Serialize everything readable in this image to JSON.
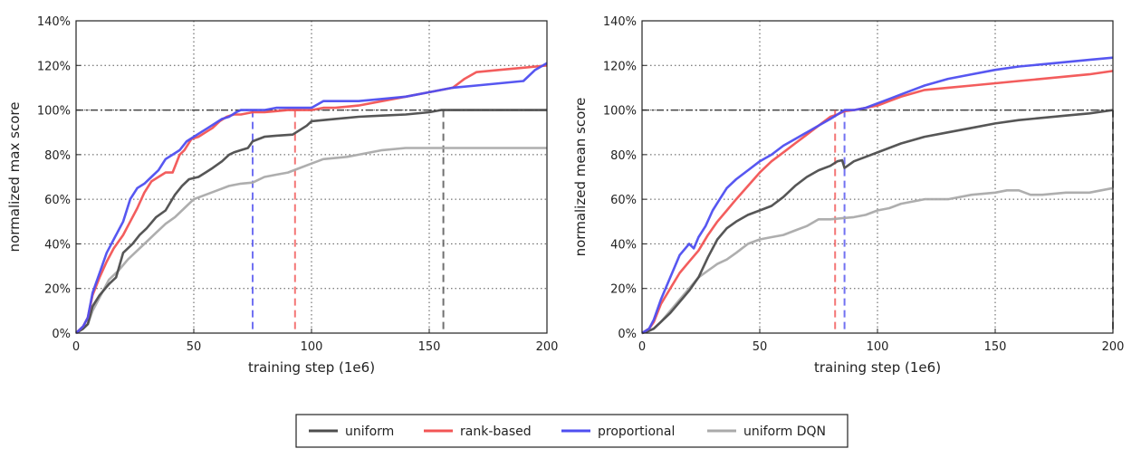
{
  "legend": {
    "items": [
      {
        "label": "uniform",
        "color": "#4d4d4d"
      },
      {
        "label": "rank-based",
        "color": "#f25454"
      },
      {
        "label": "proportional",
        "color": "#4e4ef0"
      },
      {
        "label": "uniform DQN",
        "color": "#aaaaaa"
      }
    ]
  },
  "chart_data": [
    {
      "type": "line",
      "xlabel": "training step (1e6)",
      "ylabel": "normalized max score",
      "xlim": [
        0,
        200
      ],
      "ylim": [
        0,
        140
      ],
      "xticks": [
        "0",
        "50",
        "100",
        "150",
        "200"
      ],
      "yticks": [
        "0%",
        "20%",
        "40%",
        "60%",
        "80%",
        "100%",
        "120%",
        "140%"
      ],
      "grid": true,
      "reference_line": 100,
      "vlines": [
        {
          "series": "proportional",
          "x": 75
        },
        {
          "series": "rank-based",
          "x": 93
        },
        {
          "series": "uniform",
          "x": 156
        }
      ],
      "series": [
        {
          "name": "uniform",
          "color": "#4d4d4d",
          "x": [
            0,
            3,
            5,
            7,
            10,
            14,
            17,
            20,
            24,
            27,
            30,
            34,
            38,
            42,
            45,
            48,
            52,
            55,
            58,
            62,
            65,
            67,
            70,
            73,
            75,
            80,
            85,
            92,
            98,
            100,
            110,
            120,
            130,
            140,
            150,
            155,
            160,
            170,
            180,
            190,
            200
          ],
          "y": [
            0,
            2,
            4,
            12,
            17,
            22,
            25,
            36,
            40,
            44,
            47,
            52,
            55,
            62,
            66,
            69,
            70,
            72,
            74,
            77,
            80,
            81,
            82,
            83,
            86,
            88,
            88.5,
            89,
            93,
            95,
            96,
            97,
            97.5,
            98,
            99,
            100,
            100,
            100,
            100,
            100,
            100
          ]
        },
        {
          "name": "rank-based",
          "color": "#f25454",
          "x": [
            0,
            3,
            5,
            7,
            10,
            13,
            16,
            20,
            23,
            26,
            29,
            32,
            35,
            38,
            41,
            44,
            46,
            49,
            52,
            55,
            58,
            61,
            64,
            67,
            70,
            75,
            80,
            85,
            90,
            95,
            100,
            105,
            110,
            120,
            130,
            140,
            150,
            160,
            165,
            170,
            180,
            190,
            200
          ],
          "y": [
            0,
            3,
            7,
            17,
            25,
            32,
            38,
            44,
            50,
            56,
            63,
            68,
            70,
            72,
            72,
            80,
            82,
            87,
            88,
            90,
            92,
            95,
            97,
            98,
            98,
            99,
            99,
            99.5,
            100,
            100,
            100,
            101,
            101,
            102,
            104,
            106,
            108,
            110,
            114,
            117,
            118,
            119,
            120
          ]
        },
        {
          "name": "proportional",
          "color": "#4e4ef0",
          "x": [
            0,
            3,
            5,
            7,
            10,
            13,
            16,
            20,
            23,
            26,
            29,
            32,
            35,
            38,
            41,
            44,
            47,
            50,
            53,
            56,
            59,
            62,
            65,
            68,
            70,
            75,
            80,
            85,
            90,
            95,
            100,
            105,
            110,
            120,
            130,
            140,
            150,
            160,
            170,
            180,
            190,
            195,
            200
          ],
          "y": [
            0,
            3,
            7,
            18,
            27,
            36,
            42,
            50,
            60,
            65,
            67,
            70,
            73,
            78,
            80,
            82,
            86,
            88,
            90,
            92,
            94,
            96,
            97,
            99,
            100,
            100,
            100,
            101,
            101,
            101,
            101,
            104,
            104,
            104,
            105,
            106,
            108,
            110,
            111,
            112,
            113,
            118,
            121
          ]
        },
        {
          "name": "uniform DQN",
          "color": "#aaaaaa",
          "x": [
            0,
            3,
            5,
            7,
            10,
            14,
            18,
            22,
            26,
            30,
            34,
            38,
            42,
            46,
            50,
            55,
            60,
            65,
            70,
            75,
            80,
            85,
            90,
            95,
            100,
            105,
            110,
            115,
            120,
            125,
            130,
            140,
            150,
            160,
            170,
            180,
            190,
            200
          ],
          "y": [
            0,
            2,
            4,
            10,
            16,
            24,
            28,
            33,
            37,
            41,
            45,
            49,
            52,
            56,
            60,
            62,
            64,
            66,
            67,
            67.5,
            70,
            71,
            72,
            74,
            76,
            78,
            78.5,
            79,
            80,
            81,
            82,
            83,
            83,
            83,
            83,
            83,
            83,
            83
          ]
        }
      ]
    },
    {
      "type": "line",
      "xlabel": "training step (1e6)",
      "ylabel": "normalized mean score",
      "xlim": [
        0,
        200
      ],
      "ylim": [
        0,
        140
      ],
      "xticks": [
        "0",
        "50",
        "100",
        "150",
        "200"
      ],
      "yticks": [
        "0%",
        "20%",
        "40%",
        "60%",
        "80%",
        "100%",
        "120%",
        "140%"
      ],
      "grid": true,
      "reference_line": 100,
      "vlines": [
        {
          "series": "rank-based",
          "x": 82
        },
        {
          "series": "proportional",
          "x": 86
        },
        {
          "series": "uniform",
          "x": 200
        }
      ],
      "series": [
        {
          "name": "uniform",
          "color": "#4d4d4d",
          "x": [
            0,
            3,
            5,
            8,
            12,
            16,
            20,
            24,
            28,
            32,
            36,
            40,
            45,
            50,
            55,
            60,
            65,
            70,
            75,
            80,
            83,
            85,
            86,
            90,
            95,
            100,
            110,
            120,
            130,
            140,
            150,
            160,
            170,
            180,
            190,
            200
          ],
          "y": [
            0,
            1,
            2,
            5,
            9,
            14,
            19,
            25,
            34,
            42,
            47,
            50,
            53,
            55,
            57,
            61,
            66,
            70,
            73,
            75,
            77,
            77.5,
            74,
            77,
            79,
            81,
            85,
            88,
            90,
            92,
            94,
            95.5,
            96.5,
            97.5,
            98.5,
            100
          ]
        },
        {
          "name": "rank-based",
          "color": "#f25454",
          "x": [
            0,
            3,
            5,
            8,
            12,
            16,
            20,
            24,
            28,
            32,
            36,
            40,
            45,
            50,
            55,
            60,
            65,
            70,
            75,
            80,
            83,
            86,
            90,
            95,
            100,
            105,
            110,
            120,
            130,
            140,
            150,
            160,
            170,
            180,
            190,
            200
          ],
          "y": [
            0,
            2,
            5,
            13,
            20,
            27,
            32,
            37,
            44,
            50,
            55,
            60,
            66,
            72,
            77,
            81,
            85,
            89,
            93,
            97,
            98,
            99.5,
            100,
            101,
            102,
            104,
            106,
            109,
            110,
            111,
            112,
            113,
            114,
            115,
            116,
            117.5
          ]
        },
        {
          "name": "proportional",
          "color": "#4e4ef0",
          "x": [
            0,
            3,
            5,
            8,
            12,
            16,
            20,
            22,
            24,
            27,
            30,
            33,
            36,
            40,
            45,
            50,
            55,
            60,
            65,
            70,
            75,
            80,
            83,
            86,
            90,
            95,
            100,
            105,
            110,
            120,
            130,
            140,
            150,
            160,
            170,
            180,
            190,
            200
          ],
          "y": [
            0,
            2,
            6,
            15,
            25,
            35,
            40,
            38,
            43,
            48,
            55,
            60,
            65,
            69,
            73,
            77,
            80,
            84,
            87,
            90,
            93,
            96,
            98,
            100,
            100,
            101,
            103,
            105,
            107,
            111,
            114,
            116,
            118,
            119.5,
            120.5,
            121.5,
            122.5,
            123.5
          ]
        },
        {
          "name": "uniform DQN",
          "color": "#aaaaaa",
          "x": [
            0,
            3,
            5,
            8,
            12,
            16,
            20,
            24,
            28,
            32,
            36,
            40,
            45,
            50,
            55,
            60,
            65,
            70,
            75,
            80,
            85,
            90,
            95,
            100,
            105,
            110,
            115,
            120,
            125,
            130,
            140,
            150,
            155,
            160,
            165,
            170,
            180,
            190,
            200
          ],
          "y": [
            0,
            1,
            2,
            5,
            10,
            15,
            20,
            25,
            28,
            31,
            33,
            36,
            40,
            42,
            43,
            44,
            46,
            48,
            51,
            51,
            51.5,
            52,
            53,
            55,
            56,
            58,
            59,
            60,
            60,
            60,
            62,
            63,
            64,
            64,
            62,
            62,
            63,
            63,
            65
          ]
        }
      ]
    }
  ]
}
